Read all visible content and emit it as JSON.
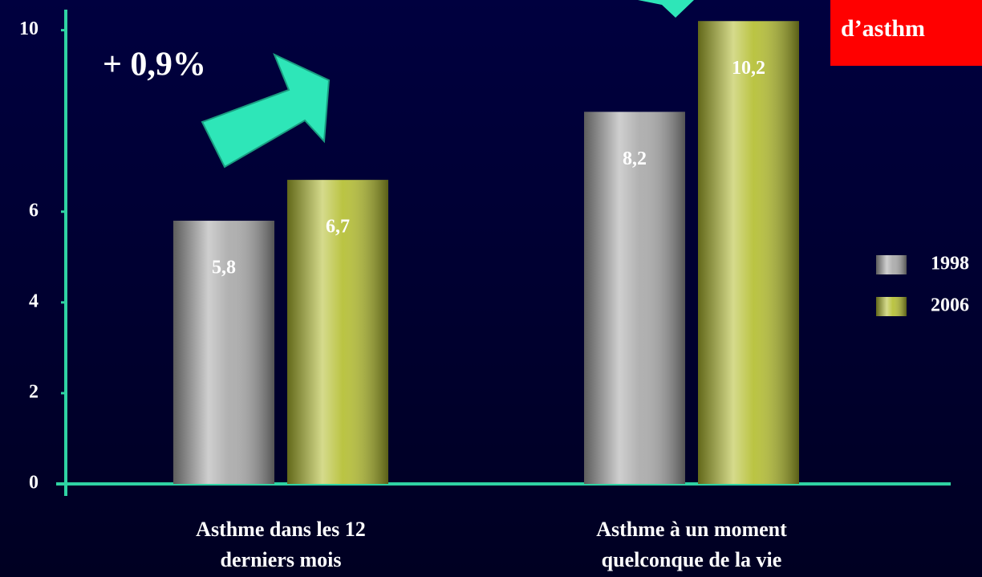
{
  "chart_data": {
    "type": "bar",
    "title": "d’asthm",
    "annotations": [
      "+ 0,9%"
    ],
    "categories": [
      [
        "Asthme dans les 12",
        "derniers mois"
      ],
      [
        "Asthme à un moment",
        "quelconque de la vie"
      ]
    ],
    "series": [
      {
        "name": "1998",
        "color": "#a8a8a8",
        "values": [
          5.8,
          8.2
        ],
        "value_labels": [
          "5,8",
          "8,2"
        ]
      },
      {
        "name": "2006",
        "color": "#b3bd2e",
        "values": [
          6.7,
          10.2
        ],
        "value_labels": [
          "6,7",
          "10,2"
        ]
      }
    ],
    "ylim": [
      0,
      10.4
    ],
    "yticks": [
      0,
      2,
      4,
      6,
      10
    ],
    "grid": false,
    "legend": "right"
  }
}
